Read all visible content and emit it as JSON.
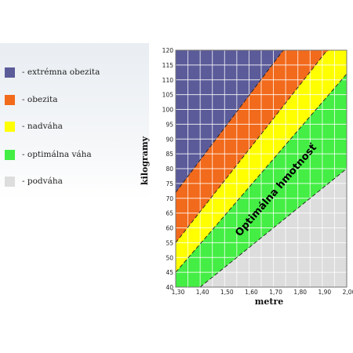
{
  "legend": [
    {
      "label": "- extrémna obezita",
      "color": "#5b5b9a"
    },
    {
      "label": "- obezita",
      "color": "#f26a1b"
    },
    {
      "label": "- nadváha",
      "color": "#ffff00"
    },
    {
      "label": "- optimálna váha",
      "color": "#44ee44"
    },
    {
      "label": "- podváha",
      "color": "#dddddd"
    }
  ],
  "chart_data": {
    "type": "area",
    "xlabel": "metre",
    "ylabel": "kilogramy",
    "xlim": [
      1.3,
      2.0
    ],
    "ylim": [
      40,
      120
    ],
    "x_tick_labels": [
      "1,30",
      "1,40",
      "1,50",
      "1,60",
      "1,70",
      "1,80",
      "1,90",
      "2,00"
    ],
    "y_ticks": [
      40,
      45,
      50,
      55,
      60,
      65,
      70,
      75,
      80,
      85,
      90,
      95,
      100,
      105,
      110,
      115,
      120
    ],
    "grid": true,
    "band_label": "Optimálna hmotnosť",
    "boundaries": [
      {
        "between": [
          "podváha",
          "optimálna váha"
        ],
        "x": [
          1.4,
          2.0
        ],
        "y": [
          40,
          80
        ]
      },
      {
        "between": [
          "optimálna váha",
          "nadváha"
        ],
        "x": [
          1.3,
          2.0
        ],
        "y": [
          45,
          112
        ]
      },
      {
        "between": [
          "nadváha",
          "obezita"
        ],
        "x": [
          1.3,
          1.92
        ],
        "y": [
          55,
          120
        ]
      },
      {
        "between": [
          "obezita",
          "extrémna obezita"
        ],
        "x": [
          1.3,
          1.74
        ],
        "y": [
          72,
          120
        ]
      }
    ],
    "regions": [
      "podváha",
      "optimálna váha",
      "nadváha",
      "obezita",
      "extrémna obezita"
    ]
  }
}
